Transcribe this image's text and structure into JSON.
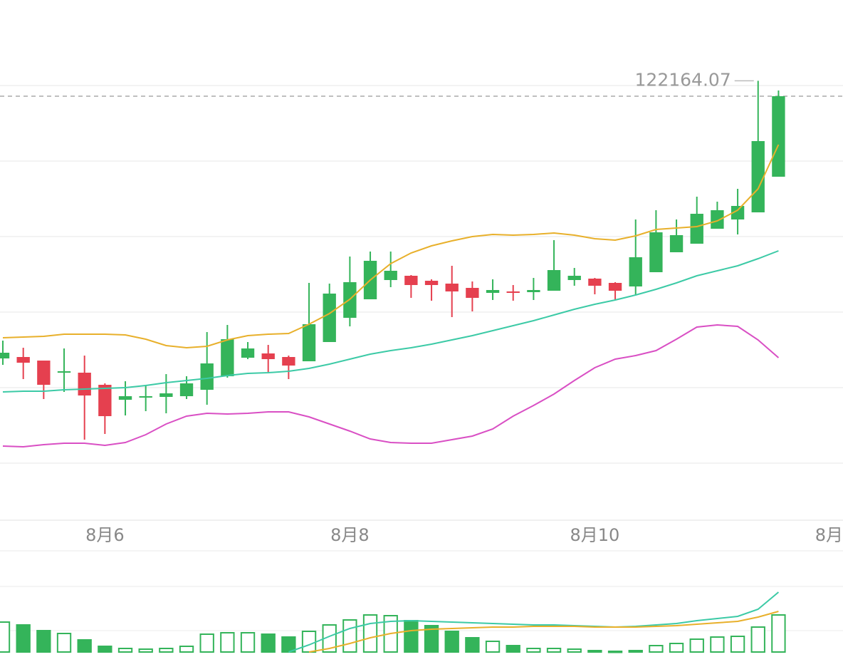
{
  "chart_data": {
    "type": "candlestick",
    "x": [
      0,
      1,
      2,
      3,
      4,
      5,
      6,
      7,
      8,
      9,
      10,
      11,
      12,
      13,
      14,
      15,
      16,
      17,
      18,
      19,
      20,
      21,
      22,
      23,
      24,
      25,
      26,
      27,
      28,
      29,
      30,
      31,
      32,
      33,
      34,
      35,
      36,
      37,
      38
    ],
    "open": [
      112425,
      112475,
      112350,
      111925,
      111925,
      111500,
      110975,
      111050,
      111075,
      111100,
      111325,
      111800,
      112450,
      112600,
      112475,
      112325,
      113000,
      113850,
      114500,
      115175,
      115325,
      115150,
      115050,
      114900,
      114725,
      114775,
      114750,
      114800,
      115175,
      115225,
      115075,
      114950,
      115450,
      116150,
      116450,
      116975,
      117300,
      117550,
      118800
    ],
    "high": [
      113050,
      112800,
      112350,
      112775,
      112525,
      111550,
      111625,
      111500,
      111875,
      111800,
      113350,
      113600,
      113000,
      112900,
      112525,
      115075,
      115050,
      116000,
      116175,
      116175,
      115350,
      115200,
      115675,
      115125,
      115200,
      115000,
      115250,
      116575,
      115600,
      115250,
      115100,
      117300,
      117625,
      117300,
      118100,
      117925,
      118375,
      122164.07,
      121825
    ],
    "low": [
      112200,
      111700,
      111000,
      111250,
      109575,
      109775,
      110425,
      110575,
      110500,
      111000,
      110800,
      111750,
      112400,
      111950,
      111700,
      112325,
      113000,
      113550,
      114500,
      114925,
      114550,
      114450,
      113875,
      114075,
      114475,
      114450,
      114475,
      114800,
      114975,
      114675,
      114475,
      114650,
      115450,
      116150,
      116450,
      116975,
      116775,
      117550,
      118800
    ],
    "close": [
      112625,
      112275,
      111500,
      111975,
      111125,
      110400,
      111100,
      111100,
      111200,
      111550,
      112250,
      113100,
      112775,
      112400,
      112175,
      113625,
      114700,
      115100,
      115850,
      115500,
      115000,
      115000,
      114775,
      114550,
      114825,
      114750,
      114825,
      115525,
      115325,
      114975,
      114800,
      115975,
      116850,
      116750,
      117500,
      117625,
      117775,
      120050,
      121625
    ],
    "up_color": "#34b45a",
    "down_color": "#e5404f",
    "xlim": [
      -0.14,
      41.16
    ],
    "xticks": [
      {
        "value": 5,
        "label": "8月6"
      },
      {
        "value": 17,
        "label": "8月8"
      },
      {
        "value": 29,
        "label": "8月10"
      },
      {
        "value": 41,
        "label": "8月"
      }
    ],
    "ylim": [
      106750,
      125000
    ],
    "yticks": [
      122000,
      119350,
      116700,
      114050,
      111400,
      108750
    ],
    "grid": true,
    "last_price_line": true,
    "overlays": [
      {
        "color": "#e8b02b",
        "values": [
          113150,
          113175,
          113200,
          113275,
          113275,
          113275,
          113250,
          113100,
          112875,
          112800,
          112850,
          113075,
          113225,
          113275,
          113300,
          113625,
          114000,
          114500,
          115175,
          115750,
          116125,
          116375,
          116550,
          116700,
          116775,
          116750,
          116775,
          116825,
          116750,
          116625,
          116575,
          116725,
          116950,
          117000,
          117050,
          117250,
          117625,
          118375,
          119925
        ]
      },
      {
        "color": "#3ccaa6",
        "values": [
          111250,
          111275,
          111275,
          111325,
          111350,
          111375,
          111400,
          111475,
          111575,
          111650,
          111725,
          111825,
          111900,
          111925,
          111975,
          112075,
          112225,
          112400,
          112575,
          112700,
          112800,
          112925,
          113075,
          113225,
          113400,
          113575,
          113750,
          113950,
          114150,
          114325,
          114475,
          114650,
          114850,
          115075,
          115325,
          115500,
          115675,
          115925,
          116200
        ]
      },
      {
        "color": "#d94fc4",
        "values": [
          109350,
          109325,
          109400,
          109450,
          109450,
          109375,
          109475,
          109750,
          110125,
          110400,
          110500,
          110475,
          110500,
          110550,
          110550,
          110375,
          110125,
          109875,
          109600,
          109475,
          109450,
          109450,
          109575,
          109700,
          109950,
          110400,
          110775,
          111175,
          111650,
          112100,
          112400,
          112525,
          112700,
          113100,
          113525,
          113600,
          113550,
          113075,
          112450
        ]
      }
    ],
    "volume": {
      "color": "#34b45a",
      "ylim": [
        0,
        100
      ],
      "values": [
        42,
        38,
        30,
        26,
        17,
        8,
        5,
        4,
        5,
        8,
        25,
        27,
        27,
        25,
        21,
        29,
        38,
        45,
        52,
        51,
        44,
        37,
        29,
        20,
        15,
        9,
        5,
        5,
        4,
        2,
        1,
        2,
        9,
        12,
        18,
        21,
        22,
        35,
        52
      ],
      "ma": [
        {
          "color": "#3ccaa6",
          "values": [
            null,
            null,
            null,
            null,
            null,
            null,
            null,
            null,
            null,
            null,
            null,
            null,
            null,
            null,
            0,
            10,
            22,
            33,
            40,
            43,
            44,
            43,
            42,
            41,
            40,
            39,
            38,
            38,
            37,
            36,
            35,
            36,
            38,
            40,
            44,
            47,
            50,
            60,
            84
          ]
        },
        {
          "color": "#e8b02b",
          "values": [
            null,
            null,
            null,
            null,
            null,
            null,
            null,
            null,
            null,
            null,
            null,
            null,
            null,
            null,
            null,
            0,
            5,
            12,
            20,
            26,
            30,
            32,
            33,
            34,
            35,
            35,
            36,
            36,
            36,
            35,
            35,
            35,
            36,
            37,
            39,
            41,
            43,
            49,
            57
          ]
        }
      ]
    }
  }
}
